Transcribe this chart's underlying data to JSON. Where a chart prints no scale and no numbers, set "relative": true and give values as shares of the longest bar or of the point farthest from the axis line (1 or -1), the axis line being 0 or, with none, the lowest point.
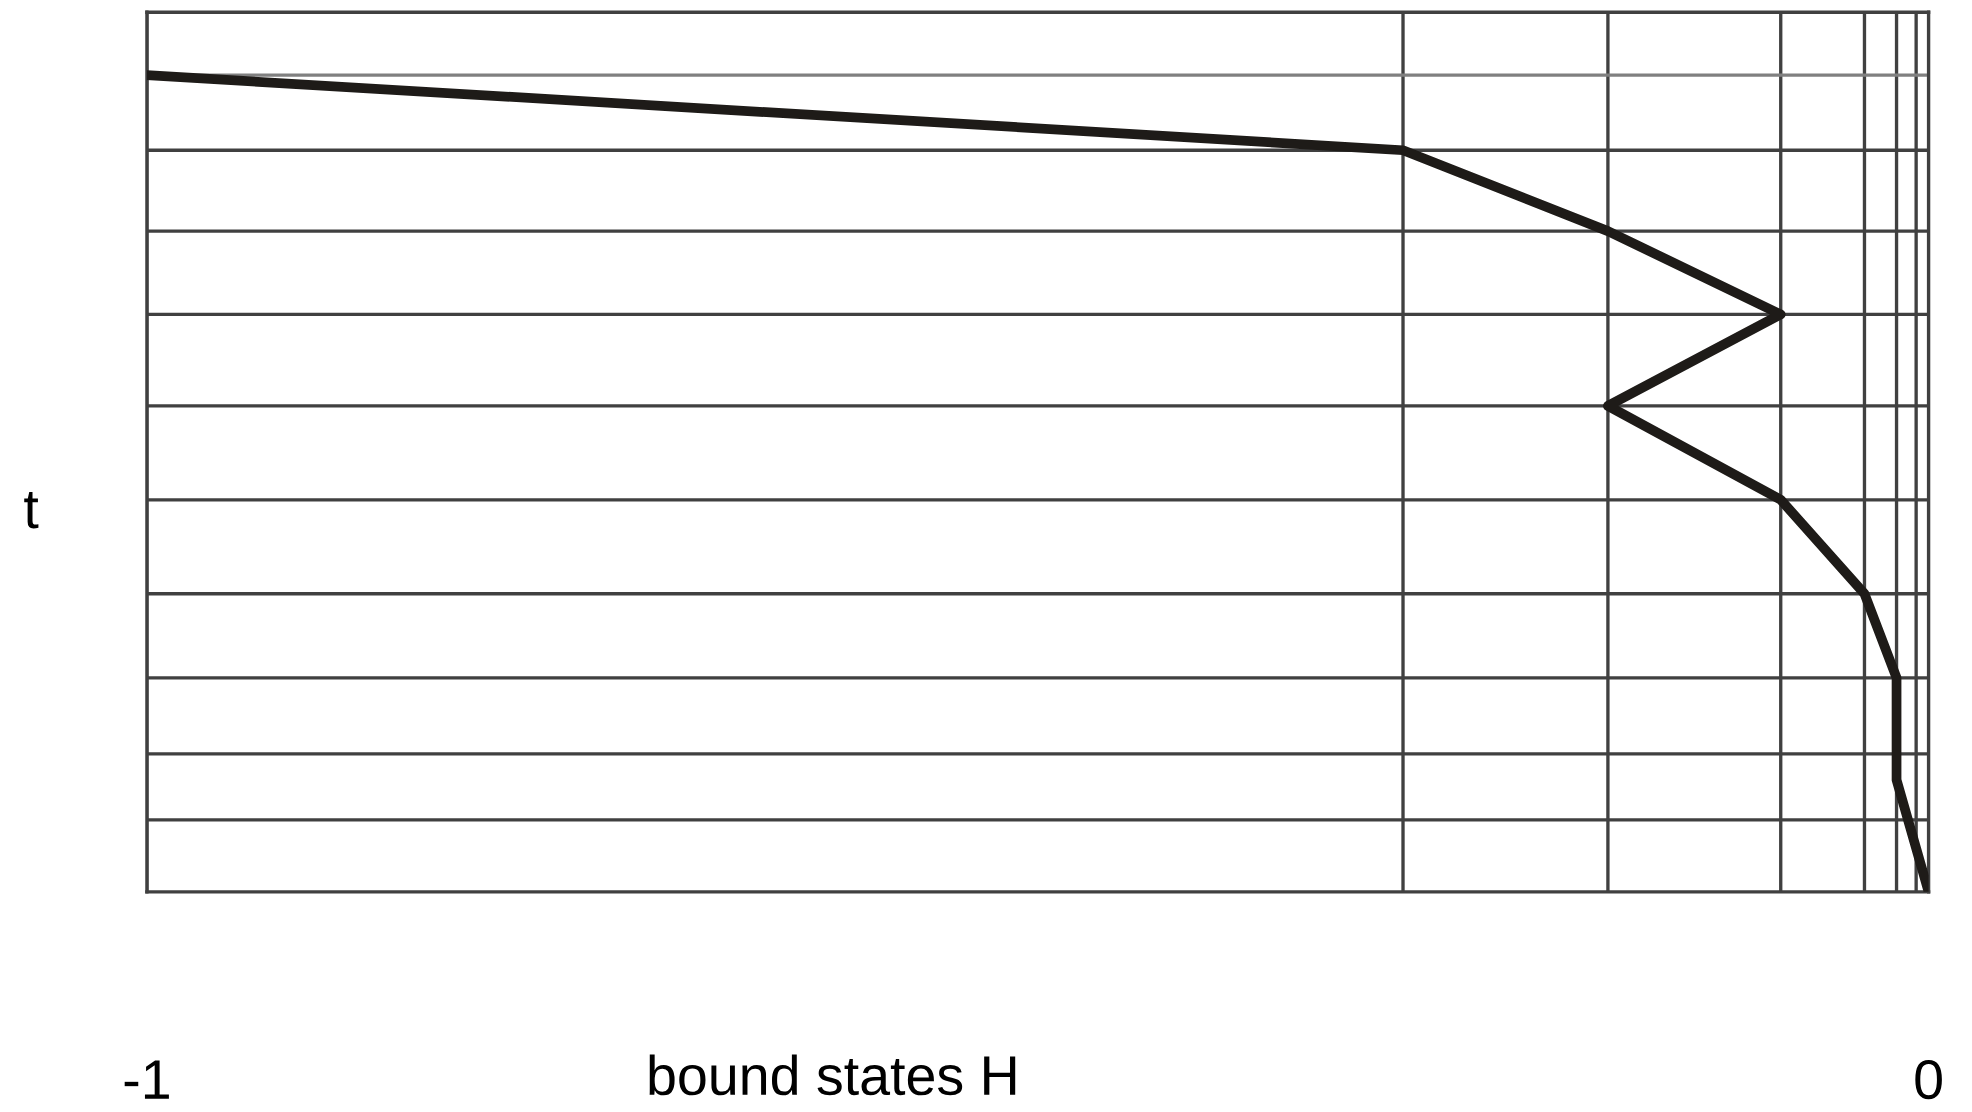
{
  "chart_data": {
    "type": "line",
    "xlabel": "bound states H",
    "ylabel": "t",
    "relative": true,
    "xlim": [
      -1,
      0
    ],
    "xticks": [
      -1,
      {
        "value": -0.295,
        "label": null
      },
      {
        "value": -0.18,
        "label": null
      },
      {
        "value": -0.083,
        "label": null
      },
      {
        "value": -0.036,
        "label": null
      },
      {
        "value": -0.018,
        "label": null
      },
      {
        "value": -0.007,
        "label": null
      },
      0
    ],
    "grid": "x",
    "marker": "none",
    "line_style": "solid",
    "series": [
      {
        "color": "#1e1b18",
        "x": [
          -1,
          -0.295,
          -0.18,
          -0.083,
          -0.18,
          -0.083,
          -0.036,
          -0.018,
          -0.018,
          0
        ],
        "values": [
          1,
          0.908,
          0.809,
          0.707,
          0.595,
          0.48,
          0.365,
          0.262,
          0.137,
          0
        ]
      }
    ],
    "ref_lines": [
      {
        "axis": "y",
        "value": 1,
        "color": "#808080"
      },
      {
        "axis": "y",
        "value": 0.908,
        "color": "#404040"
      },
      {
        "axis": "y",
        "value": 0.809,
        "color": "#404040"
      },
      {
        "axis": "y",
        "value": 0.707,
        "color": "#404040"
      },
      {
        "axis": "y",
        "value": 0.595,
        "color": "#404040"
      },
      {
        "axis": "y",
        "value": 0.48,
        "color": "#404040"
      },
      {
        "axis": "y",
        "value": 0.365,
        "color": "#404040"
      },
      {
        "axis": "y",
        "value": 0.262,
        "color": "#404040"
      },
      {
        "axis": "y",
        "value": 0.169,
        "color": "#404040"
      },
      {
        "axis": "y",
        "value": 0.088,
        "color": "#404040"
      }
    ]
  }
}
